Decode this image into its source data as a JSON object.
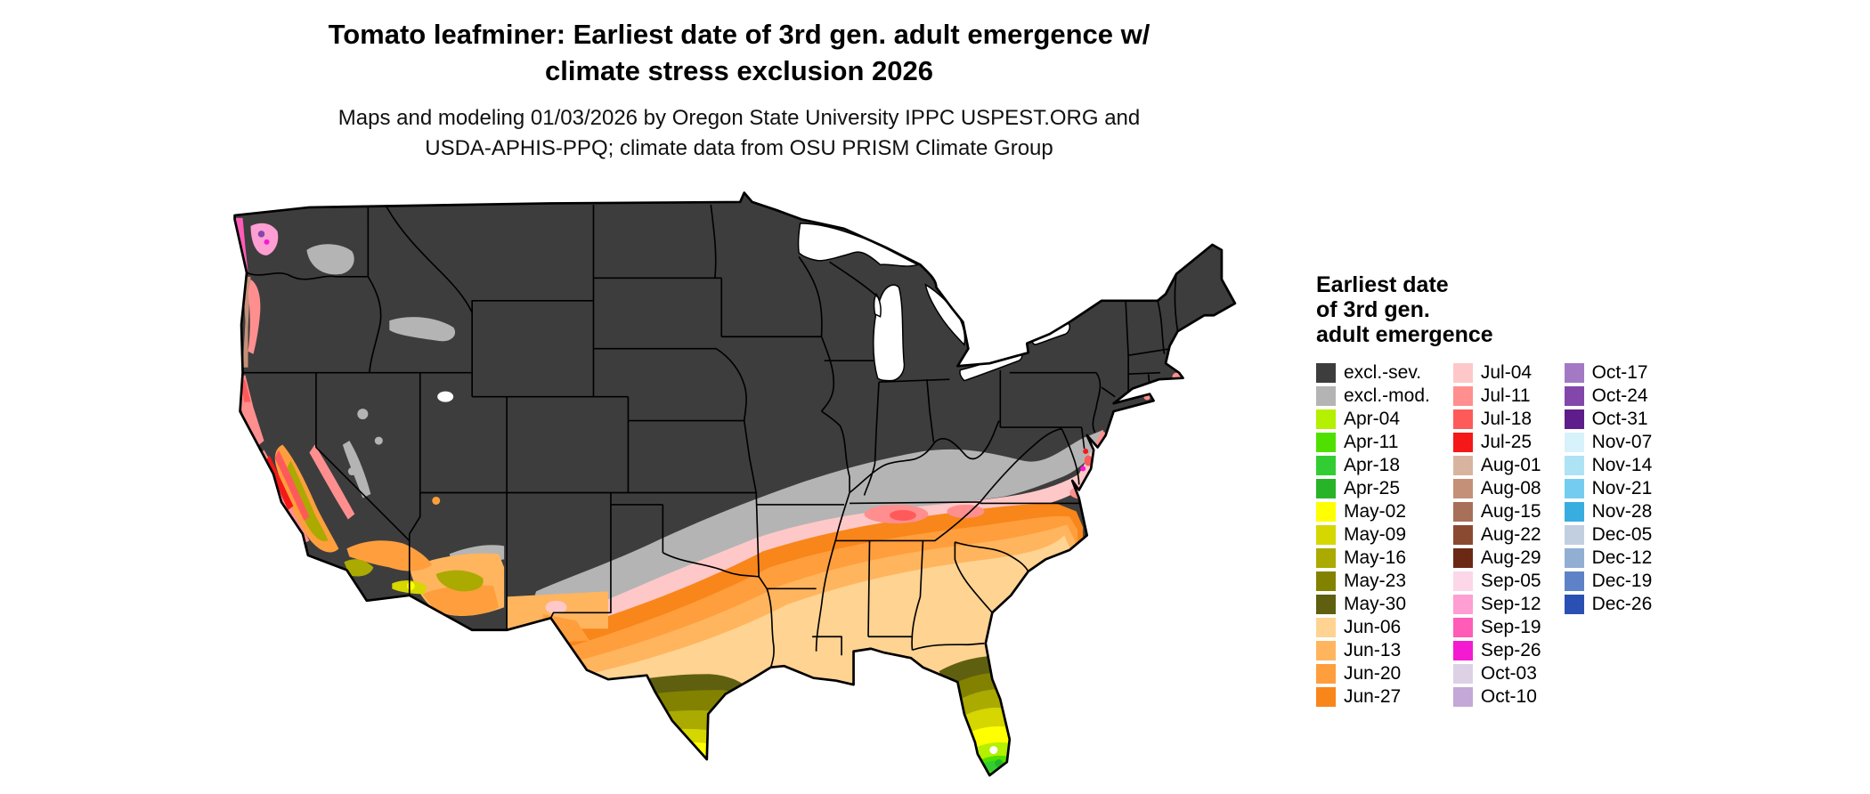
{
  "header": {
    "title_line1": "Tomato leafminer: Earliest date of 3rd gen. adult emergence w/",
    "title_line2": "climate stress exclusion 2026",
    "subtitle_line1": "Maps and modeling 01/03/2026 by Oregon State University IPPC USPEST.ORG and",
    "subtitle_line2": "USDA-APHIS-PPQ; climate data from OSU PRISM Climate Group"
  },
  "legend": {
    "title_lines": [
      "Earliest date",
      "of 3rd gen.",
      "adult emergence"
    ],
    "columns": [
      [
        "excl.-sev.",
        "excl.-mod.",
        "Apr-04",
        "Apr-11",
        "Apr-18",
        "Apr-25",
        "May-02",
        "May-09",
        "May-16",
        "May-23",
        "May-30",
        "Jun-06",
        "Jun-13",
        "Jun-20",
        "Jun-27"
      ],
      [
        "Jul-04",
        "Jul-11",
        "Jul-18",
        "Jul-25",
        "Aug-01",
        "Aug-08",
        "Aug-15",
        "Aug-22",
        "Aug-29",
        "Sep-05",
        "Sep-12",
        "Sep-19",
        "Sep-26",
        "Oct-03",
        "Oct-10"
      ],
      [
        "Oct-17",
        "Oct-24",
        "Oct-31",
        "Nov-07",
        "Nov-14",
        "Nov-21",
        "Nov-28",
        "Dec-05",
        "Dec-12",
        "Dec-19",
        "Dec-26"
      ]
    ]
  },
  "palette": {
    "excl.-sev.": "#3d3d3d",
    "excl.-mod.": "#b4b4b4",
    "Apr-04": "#b4f000",
    "Apr-11": "#50e000",
    "Apr-18": "#32cd32",
    "Apr-25": "#28b428",
    "May-02": "#ffff00",
    "May-09": "#d6d600",
    "May-16": "#aaaa00",
    "May-23": "#828200",
    "May-30": "#5f5f10",
    "Jun-06": "#ffd392",
    "Jun-13": "#ffb55e",
    "Jun-20": "#ff9e3d",
    "Jun-27": "#f8861a",
    "Jul-04": "#ffc8c8",
    "Jul-11": "#ff8f8f",
    "Jul-18": "#ff5a5a",
    "Jul-25": "#f51818",
    "Aug-01": "#d8b4a0",
    "Aug-08": "#c49078",
    "Aug-15": "#a87058",
    "Aug-22": "#8a4a32",
    "Aug-29": "#6b2814",
    "Sep-05": "#fbd7e8",
    "Sep-12": "#ff9ed2",
    "Sep-19": "#ff5cb8",
    "Sep-26": "#f41ad2",
    "Oct-03": "#ddd1e6",
    "Oct-10": "#c3a8d8",
    "Oct-17": "#a379c4",
    "Oct-24": "#8347ab",
    "Oct-31": "#5e1d8a",
    "Nov-07": "#d7f2fb",
    "Nov-14": "#aee3f5",
    "Nov-21": "#74cdf0",
    "Nov-28": "#38ade0",
    "Dec-05": "#c2cfe0",
    "Dec-12": "#93aed3",
    "Dec-19": "#5e82c8",
    "Dec-26": "#2b50b4"
  }
}
